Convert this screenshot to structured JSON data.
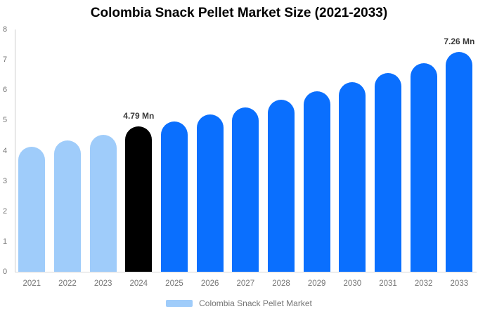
{
  "title": "Colombia Snack Pellet Market Size (2021-2033)",
  "legend": {
    "items": [
      {
        "label": "Colombia Snack Pellet Market",
        "color": "#9fccfa"
      }
    ]
  },
  "colors": {
    "historical_bar": "#9fccfa",
    "highlight_bar": "#000000",
    "forecast_bar": "#0a6ffe",
    "axis_line": "#cccccc",
    "tick_label": "#757575",
    "data_label": "#3a3a3a",
    "title_text": "#000000",
    "background": "#ffffff"
  },
  "chart_data": {
    "type": "bar",
    "title": "Colombia Snack Pellet Market Size (2021-2033)",
    "categories": [
      "2021",
      "2022",
      "2023",
      "2024",
      "2025",
      "2026",
      "2027",
      "2028",
      "2029",
      "2030",
      "2031",
      "2032",
      "2033"
    ],
    "values": [
      4.13,
      4.33,
      4.52,
      4.79,
      4.96,
      5.19,
      5.43,
      5.68,
      5.96,
      6.26,
      6.56,
      6.89,
      7.26
    ],
    "bar_colors": [
      "#9fccfa",
      "#9fccfa",
      "#9fccfa",
      "#000000",
      "#0a6ffe",
      "#0a6ffe",
      "#0a6ffe",
      "#0a6ffe",
      "#0a6ffe",
      "#0a6ffe",
      "#0a6ffe",
      "#0a6ffe",
      "#0a6ffe"
    ],
    "data_labels": [
      "",
      "",
      "",
      "4.79 Mn",
      "",
      "",
      "",
      "",
      "",
      "",
      "",
      "",
      "7.26 Mn"
    ],
    "xlabel": "",
    "ylabel": "",
    "ylim": [
      0,
      8
    ],
    "yticks": [
      0,
      1,
      2,
      3,
      4,
      5,
      6,
      7,
      8
    ],
    "grid": false,
    "legend_position": "bottom",
    "legend_entries": [
      "Colombia Snack Pellet Market"
    ]
  }
}
